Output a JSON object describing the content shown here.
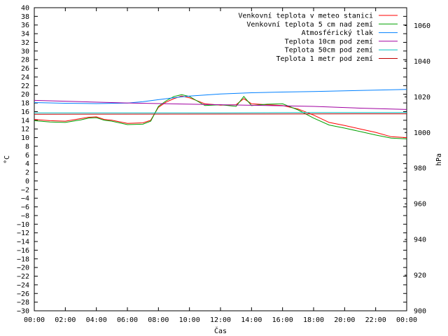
{
  "chart_data": {
    "type": "line",
    "xlabel": "Čas",
    "ylabel": "°C",
    "y2label": "hPa",
    "x_ticks": [
      "00:00",
      "02:00",
      "04:00",
      "06:00",
      "08:00",
      "10:00",
      "12:00",
      "14:00",
      "16:00",
      "18:00",
      "20:00",
      "22:00",
      "00:00"
    ],
    "x_hours": [
      0,
      2,
      4,
      6,
      8,
      10,
      12,
      14,
      16,
      18,
      20,
      22,
      24
    ],
    "ylim": [
      -30,
      40
    ],
    "y_ticks": [
      40,
      38,
      36,
      34,
      32,
      30,
      28,
      26,
      24,
      22,
      20,
      18,
      16,
      14,
      12,
      10,
      8,
      6,
      4,
      2,
      0,
      -2,
      -4,
      -6,
      -8,
      -10,
      -12,
      -14,
      -16,
      -18,
      -20,
      -22,
      -24,
      -26,
      -28,
      -30
    ],
    "y2lim": [
      900,
      1070
    ],
    "y2_ticks": [
      1060,
      1040,
      1020,
      1000,
      980,
      960,
      940,
      920,
      900
    ],
    "legend_position": "top-right",
    "grid": false,
    "series": [
      {
        "name": "Venkovní teplota v meteo stanici",
        "color": "#ff0000",
        "axis": "left",
        "x": [
          0,
          1,
          2,
          3,
          3.5,
          4,
          4.5,
          5,
          6,
          7,
          7.5,
          8,
          8.5,
          9,
          9.5,
          10,
          11,
          12,
          13,
          13.5,
          14,
          15,
          16,
          17,
          18,
          19,
          20,
          21,
          22,
          23,
          24
        ],
        "y": [
          14.2,
          13.9,
          13.8,
          14.4,
          14.7,
          14.8,
          14.2,
          14.0,
          13.3,
          13.4,
          14.0,
          17.0,
          18.2,
          19.0,
          19.6,
          19.2,
          17.8,
          17.5,
          17.6,
          19.0,
          17.8,
          17.6,
          17.4,
          16.6,
          15.2,
          13.5,
          12.8,
          12.0,
          11.2,
          10.2,
          10.0
        ]
      },
      {
        "name": "Venkovní teplota 5 cm nad zemí",
        "color": "#00a000",
        "axis": "left",
        "x": [
          0,
          1,
          2,
          3,
          3.5,
          4,
          4.5,
          5,
          6,
          7,
          7.5,
          8,
          8.5,
          9,
          9.5,
          10,
          11,
          12,
          13,
          13.5,
          14,
          15,
          16,
          17,
          18,
          19,
          20,
          21,
          22,
          23,
          24
        ],
        "y": [
          13.9,
          13.6,
          13.5,
          14.1,
          14.5,
          14.6,
          14.0,
          13.8,
          13.0,
          13.1,
          13.8,
          17.2,
          18.5,
          19.5,
          19.9,
          19.5,
          17.4,
          17.6,
          17.2,
          19.5,
          17.4,
          17.7,
          17.8,
          16.4,
          14.5,
          12.9,
          12.2,
          11.4,
          10.6,
          9.9,
          9.7
        ]
      },
      {
        "name": "Atmosférický tlak",
        "color": "#0080ff",
        "axis": "right",
        "x": [
          0,
          2,
          4,
          6,
          7,
          8,
          9,
          10,
          11,
          12,
          14,
          16,
          18,
          20,
          22,
          24
        ],
        "y": [
          1016.8,
          1016.4,
          1016.2,
          1016.5,
          1017.3,
          1018.4,
          1019.5,
          1020.4,
          1021.0,
          1021.6,
          1022.3,
          1022.7,
          1023.0,
          1023.4,
          1023.8,
          1024.2
        ]
      },
      {
        "name": "Teplota 10cm pod zemí",
        "color": "#a000a0",
        "axis": "left",
        "x": [
          0,
          6,
          12,
          18,
          21,
          24
        ],
        "y": [
          18.6,
          18.0,
          17.6,
          17.2,
          16.8,
          16.5
        ]
      },
      {
        "name": "Teplota 50cm pod zemí",
        "color": "#00c0c0",
        "axis": "left",
        "x": [
          0,
          6,
          12,
          18,
          24
        ],
        "y": [
          15.7,
          15.7,
          15.7,
          15.8,
          15.8
        ]
      },
      {
        "name": "Teplota 1 metr pod zemí",
        "color": "#c00000",
        "axis": "left",
        "x": [
          0,
          24
        ],
        "y": [
          15.4,
          15.5
        ]
      }
    ]
  }
}
